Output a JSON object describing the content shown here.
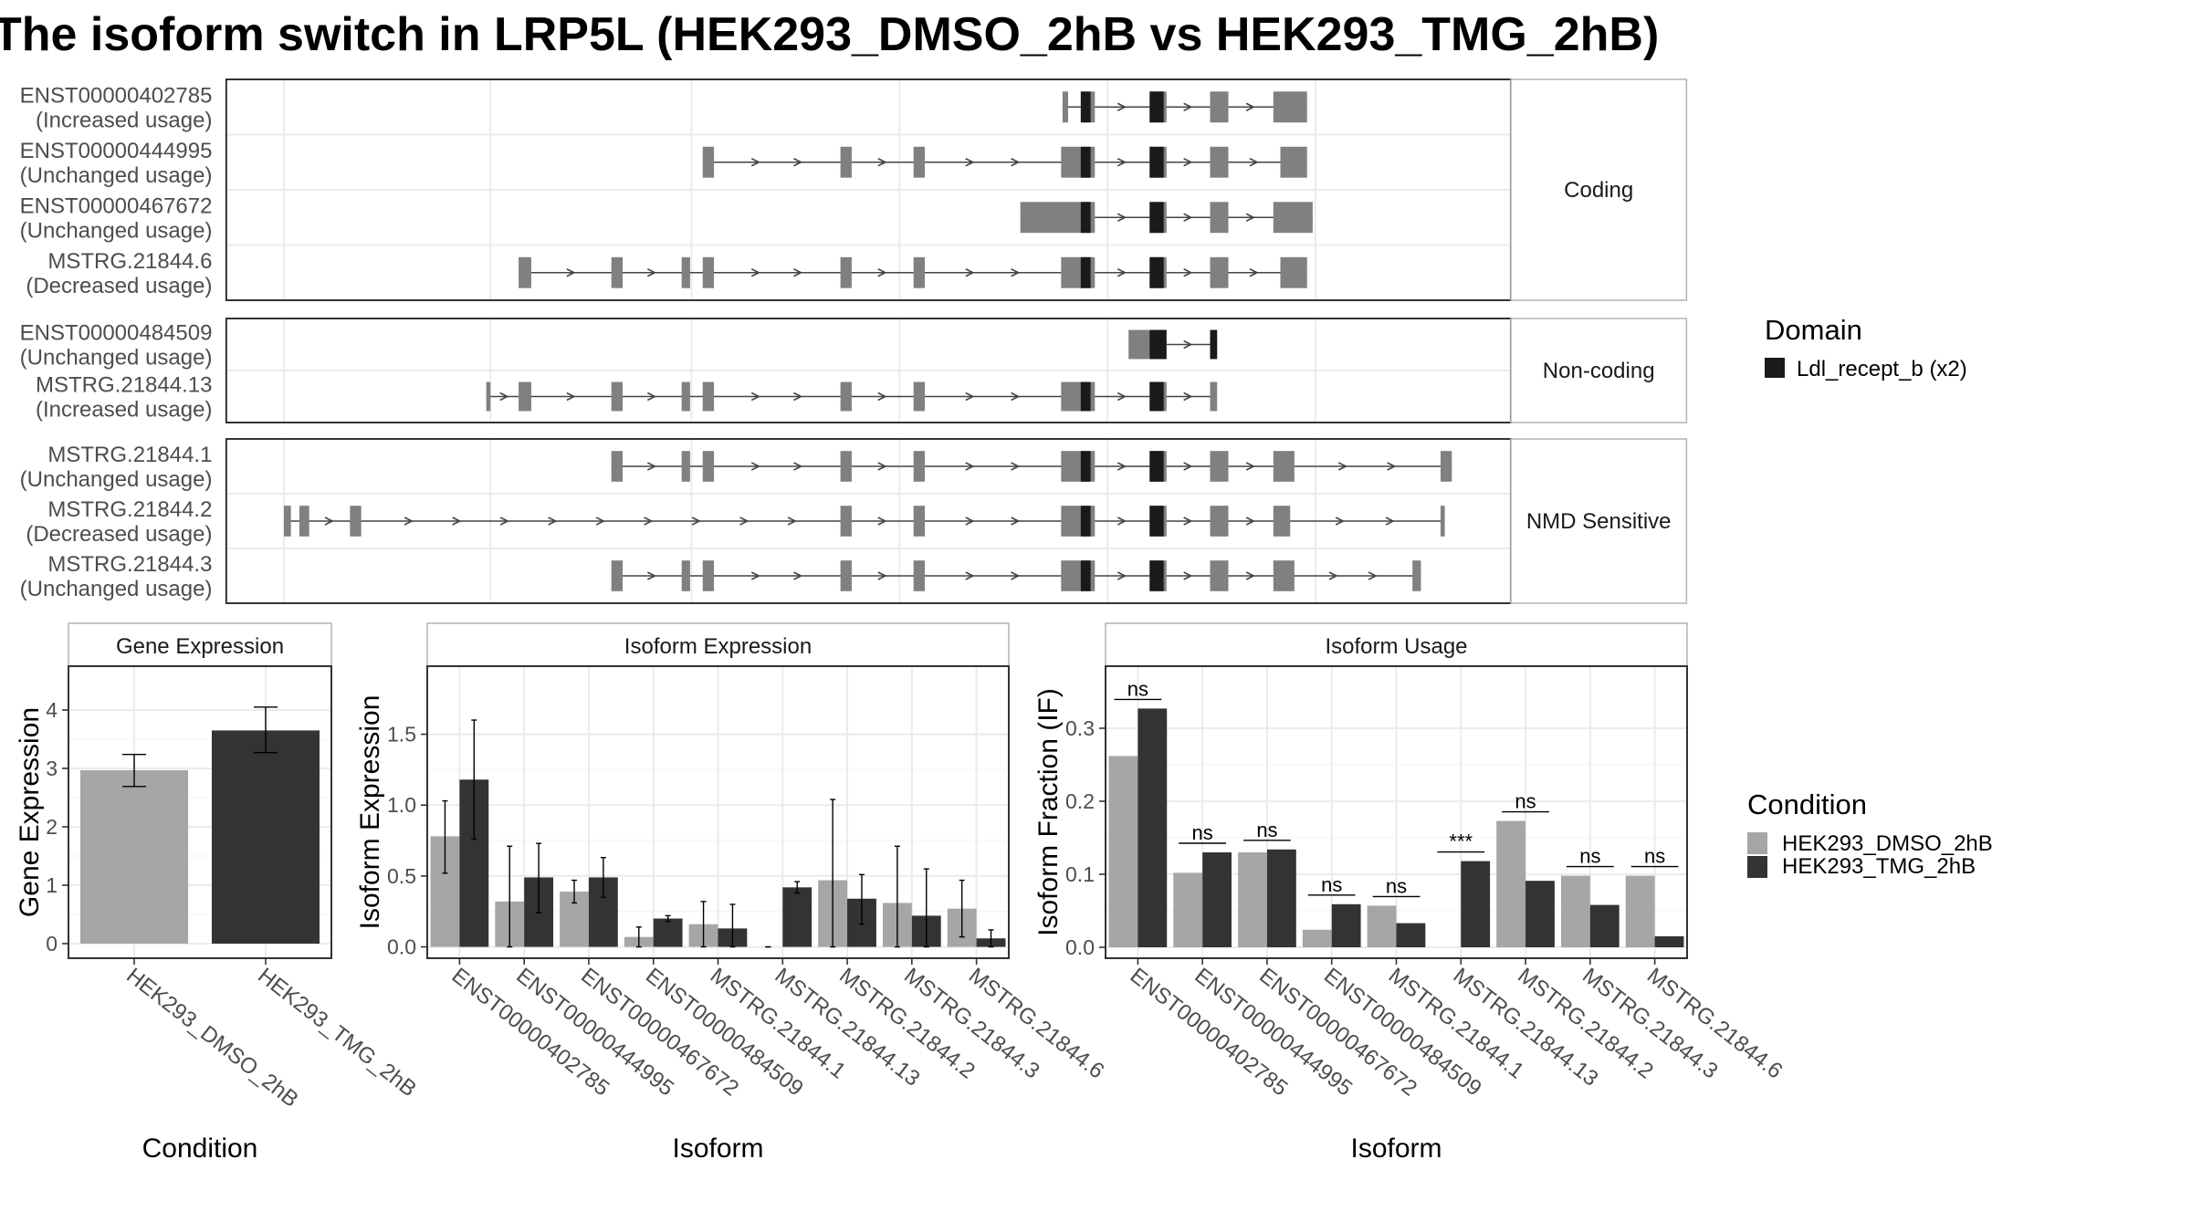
{
  "title": "The isoform switch in LRP5L (HEK293_DMSO_2hB vs HEK293_TMG_2hB)",
  "colors": {
    "exon": "#808080",
    "domain": "#1a1a1a",
    "dmso": "#a6a6a6",
    "tmg": "#333333",
    "grid": "#ebebeb",
    "panel_border": "#333333",
    "strip_border": "#b3b3b3"
  },
  "structure": {
    "groups": [
      {
        "label": "Coding",
        "isoforms": [
          {
            "id": "ENST00000402785",
            "usage": "(Increased usage)",
            "exons": [
              [
                756,
                760
              ],
              [
                769,
                779
              ],
              [
                818,
                830
              ],
              [
                861,
                874
              ],
              [
                906,
                930
              ]
            ],
            "domains": [
              [
                769,
                776
              ],
              [
                818,
                828
              ]
            ]
          },
          {
            "id": "ENST00000444995",
            "usage": "(Unchanged usage)",
            "exons": [
              [
                500,
                508
              ],
              [
                598,
                606
              ],
              [
                650,
                658
              ],
              [
                755,
                779
              ],
              [
                818,
                830
              ],
              [
                861,
                874
              ],
              [
                911,
                930
              ]
            ],
            "domains": [
              [
                769,
                776
              ],
              [
                818,
                828
              ]
            ]
          },
          {
            "id": "ENST00000467672",
            "usage": "(Unchanged usage)",
            "exons": [
              [
                726,
                779
              ],
              [
                818,
                830
              ],
              [
                861,
                874
              ],
              [
                906,
                934
              ]
            ],
            "domains": [
              [
                769,
                776
              ],
              [
                818,
                828
              ]
            ]
          },
          {
            "id": "MSTRG.21844.6",
            "usage": "(Decreased usage)",
            "exons": [
              [
                369,
                378
              ],
              [
                435,
                443
              ],
              [
                485,
                491
              ],
              [
                500,
                508
              ],
              [
                598,
                606
              ],
              [
                650,
                658
              ],
              [
                755,
                779
              ],
              [
                818,
                830
              ],
              [
                861,
                874
              ],
              [
                911,
                930
              ]
            ],
            "domains": [
              [
                769,
                776
              ],
              [
                818,
                828
              ]
            ]
          }
        ]
      },
      {
        "label": "Non-coding",
        "isoforms": [
          {
            "id": "ENST00000484509",
            "usage": "(Unchanged usage)",
            "exons": [
              [
                803,
                830
              ],
              [
                861,
                866
              ]
            ],
            "domains": [
              [
                818,
                830
              ],
              [
                861,
                866
              ]
            ]
          },
          {
            "id": "MSTRG.21844.13",
            "usage": "(Increased usage)",
            "exons": [
              [
                346,
                349
              ],
              [
                369,
                378
              ],
              [
                435,
                443
              ],
              [
                485,
                491
              ],
              [
                500,
                508
              ],
              [
                598,
                606
              ],
              [
                650,
                658
              ],
              [
                755,
                779
              ],
              [
                818,
                830
              ],
              [
                861,
                866
              ]
            ],
            "domains": [
              [
                769,
                776
              ],
              [
                818,
                828
              ]
            ]
          }
        ]
      },
      {
        "label": "NMD Sensitive",
        "isoforms": [
          {
            "id": "MSTRG.21844.1",
            "usage": "(Unchanged usage)",
            "exons": [
              [
                435,
                443
              ],
              [
                485,
                491
              ],
              [
                500,
                508
              ],
              [
                598,
                606
              ],
              [
                650,
                658
              ],
              [
                755,
                779
              ],
              [
                818,
                830
              ],
              [
                861,
                874
              ],
              [
                906,
                921
              ],
              [
                1025,
                1033
              ]
            ],
            "domains": [
              [
                769,
                776
              ],
              [
                818,
                828
              ]
            ]
          },
          {
            "id": "MSTRG.21844.2",
            "usage": "(Decreased usage)",
            "exons": [
              [
                202,
                207
              ],
              [
                213,
                220
              ],
              [
                249,
                257
              ],
              [
                598,
                606
              ],
              [
                650,
                658
              ],
              [
                755,
                779
              ],
              [
                818,
                830
              ],
              [
                861,
                874
              ],
              [
                906,
                918
              ],
              [
                1025,
                1028
              ]
            ],
            "domains": [
              [
                769,
                776
              ],
              [
                818,
                828
              ]
            ]
          },
          {
            "id": "MSTRG.21844.3",
            "usage": "(Unchanged usage)",
            "exons": [
              [
                435,
                443
              ],
              [
                485,
                491
              ],
              [
                500,
                508
              ],
              [
                598,
                606
              ],
              [
                650,
                658
              ],
              [
                755,
                779
              ],
              [
                818,
                830
              ],
              [
                861,
                874
              ],
              [
                906,
                921
              ],
              [
                1005,
                1011
              ]
            ],
            "domains": [
              [
                769,
                776
              ],
              [
                818,
                828
              ]
            ]
          }
        ]
      }
    ]
  },
  "legends": {
    "domain": {
      "title": "Domain",
      "entries": [
        {
          "label": "Ldl_recept_b (x2)",
          "color": "#1a1a1a"
        }
      ]
    },
    "condition": {
      "title": "Condition",
      "entries": [
        {
          "label": "HEK293_DMSO_2hB",
          "color": "#a6a6a6"
        },
        {
          "label": "HEK293_TMG_2hB",
          "color": "#333333"
        }
      ]
    }
  },
  "chart_data": [
    {
      "type": "bar",
      "title": "Gene Expression",
      "xlabel": "Condition",
      "ylabel": "Gene Expression",
      "ylim": [
        -0.25,
        4.75
      ],
      "yticks": [
        0,
        1,
        2,
        3,
        4
      ],
      "categories": [
        "HEK293_DMSO_2hB",
        "HEK293_TMG_2hB"
      ],
      "values": [
        2.97,
        3.65
      ],
      "errors": [
        [
          2.69,
          3.24
        ],
        [
          3.27,
          4.05
        ]
      ],
      "colors": [
        "#a6a6a6",
        "#333333"
      ],
      "grid": true
    },
    {
      "type": "bar",
      "title": "Isoform Expression",
      "xlabel": "Isoform",
      "ylabel": "Isoform Expression",
      "ylim": [
        -0.08,
        1.98
      ],
      "yticks": [
        0.0,
        0.5,
        1.0,
        1.5
      ],
      "ytick_labels": [
        "0.0",
        "0.5",
        "1.0",
        "1.5"
      ],
      "categories": [
        "ENST00000402785",
        "ENST00000444995",
        "ENST00000467672",
        "ENST00000484509",
        "MSTRG.21844.1",
        "MSTRG.21844.13",
        "MSTRG.21844.2",
        "MSTRG.21844.3",
        "MSTRG.21844.6"
      ],
      "series": [
        {
          "name": "HEK293_DMSO_2hB",
          "values": [
            0.78,
            0.32,
            0.39,
            0.07,
            0.16,
            0.0,
            0.47,
            0.31,
            0.27
          ],
          "errors": [
            [
              0.52,
              1.03
            ],
            [
              0.0,
              0.71
            ],
            [
              0.31,
              0.47
            ],
            [
              0.0,
              0.14
            ],
            [
              0.0,
              0.32
            ],
            [
              0.0,
              0.0
            ],
            [
              0.0,
              1.04
            ],
            [
              0.0,
              0.71
            ],
            [
              0.07,
              0.47
            ]
          ]
        },
        {
          "name": "HEK293_TMG_2hB",
          "values": [
            1.18,
            0.49,
            0.49,
            0.2,
            0.13,
            0.42,
            0.34,
            0.22,
            0.06
          ],
          "errors": [
            [
              0.76,
              1.6
            ],
            [
              0.24,
              0.73
            ],
            [
              0.35,
              0.63
            ],
            [
              0.18,
              0.22
            ],
            [
              0.0,
              0.3
            ],
            [
              0.38,
              0.46
            ],
            [
              0.16,
              0.51
            ],
            [
              0.0,
              0.55
            ],
            [
              0.0,
              0.12
            ]
          ]
        }
      ],
      "grid": true
    },
    {
      "type": "bar",
      "title": "Isoform Usage",
      "xlabel": "Isoform",
      "ylabel": "Isoform Fraction (IF)",
      "ylim": [
        -0.015,
        0.385
      ],
      "yticks": [
        0.0,
        0.1,
        0.2,
        0.3
      ],
      "ytick_labels": [
        "0.0",
        "0.1",
        "0.2",
        "0.3"
      ],
      "categories": [
        "ENST00000402785",
        "ENST00000444995",
        "ENST00000467672",
        "ENST00000484509",
        "MSTRG.21844.1",
        "MSTRG.21844.13",
        "MSTRG.21844.2",
        "MSTRG.21844.3",
        "MSTRG.21844.6"
      ],
      "series": [
        {
          "name": "HEK293_DMSO_2hB",
          "values": [
            0.262,
            0.102,
            0.13,
            0.024,
            0.057,
            0.0,
            0.173,
            0.098,
            0.098
          ]
        },
        {
          "name": "HEK293_TMG_2hB",
          "values": [
            0.327,
            0.13,
            0.134,
            0.059,
            0.033,
            0.118,
            0.091,
            0.058,
            0.015
          ]
        }
      ],
      "significance": [
        "ns",
        "ns",
        "ns",
        "ns",
        "ns",
        "***",
        "ns",
        "ns",
        "ns"
      ],
      "grid": true
    }
  ]
}
